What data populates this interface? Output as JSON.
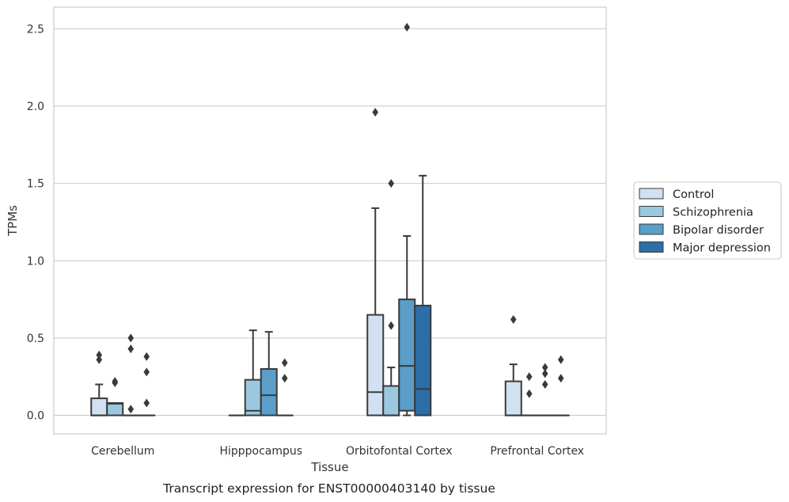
{
  "chart_data": {
    "type": "boxplot",
    "title": "",
    "caption": "Transcript expression for ENST00000403140 by tissue",
    "xlabel": "Tissue",
    "ylabel": "TPMs",
    "ylim": [
      -0.12,
      2.64
    ],
    "yticks": [
      0.0,
      0.5,
      1.0,
      1.5,
      2.0,
      2.5
    ],
    "ytick_labels": [
      "0.0",
      "0.5",
      "1.0",
      "1.5",
      "2.0",
      "2.5"
    ],
    "categories": [
      "Cerebellum",
      "Hipppocampus",
      "Orbitofontal Cortex",
      "Prefrontal Cortex"
    ],
    "grid": "horizontal",
    "legend_position": "right",
    "series": [
      {
        "name": "Control",
        "color": "#d1e1f1",
        "boxes": [
          {
            "q1": 0.0,
            "median": 0.0,
            "q3": 0.11,
            "whisker_low": 0.0,
            "whisker_high": 0.2,
            "outliers": [
              0.36,
              0.39
            ]
          },
          {
            "q1": 0.0,
            "median": 0.0,
            "q3": 0.0,
            "whisker_low": 0.0,
            "whisker_high": 0.0,
            "outliers": []
          },
          {
            "q1": 0.0,
            "median": 0.15,
            "q3": 0.65,
            "whisker_low": 0.0,
            "whisker_high": 1.34,
            "outliers": [
              1.96
            ]
          },
          {
            "q1": 0.0,
            "median": 0.0,
            "q3": 0.22,
            "whisker_low": 0.0,
            "whisker_high": 0.33,
            "outliers": [
              0.62
            ]
          }
        ]
      },
      {
        "name": "Schizophrenia",
        "color": "#9ac8e0",
        "boxes": [
          {
            "q1": 0.0,
            "median": 0.075,
            "q3": 0.08,
            "whisker_low": 0.0,
            "whisker_high": 0.08,
            "outliers": [
              0.21,
              0.22
            ]
          },
          {
            "q1": 0.0,
            "median": 0.03,
            "q3": 0.23,
            "whisker_low": 0.0,
            "whisker_high": 0.55,
            "outliers": []
          },
          {
            "q1": 0.0,
            "median": 0.0,
            "q3": 0.19,
            "whisker_low": 0.0,
            "whisker_high": 0.31,
            "outliers": [
              0.58,
              1.5
            ]
          },
          {
            "q1": 0.0,
            "median": 0.0,
            "q3": 0.0,
            "whisker_low": 0.0,
            "whisker_high": 0.0,
            "outliers": [
              0.14,
              0.25
            ]
          }
        ]
      },
      {
        "name": "Bipolar disorder",
        "color": "#5a9ec9",
        "boxes": [
          {
            "q1": 0.0,
            "median": 0.0,
            "q3": 0.0,
            "whisker_low": 0.0,
            "whisker_high": 0.0,
            "outliers": [
              0.04,
              0.43,
              0.5
            ]
          },
          {
            "q1": 0.0,
            "median": 0.13,
            "q3": 0.3,
            "whisker_low": 0.0,
            "whisker_high": 0.54,
            "outliers": []
          },
          {
            "q1": 0.03,
            "median": 0.32,
            "q3": 0.75,
            "whisker_low": 0.0,
            "whisker_high": 1.16,
            "outliers": [
              2.51
            ]
          },
          {
            "q1": 0.0,
            "median": 0.0,
            "q3": 0.0,
            "whisker_low": 0.0,
            "whisker_high": 0.0,
            "outliers": [
              0.2,
              0.27,
              0.31
            ]
          }
        ]
      },
      {
        "name": "Major depression",
        "color": "#2c6ea8",
        "boxes": [
          {
            "q1": 0.0,
            "median": 0.0,
            "q3": 0.0,
            "whisker_low": 0.0,
            "whisker_high": 0.0,
            "outliers": [
              0.08,
              0.28,
              0.38
            ]
          },
          {
            "q1": 0.0,
            "median": 0.0,
            "q3": 0.0,
            "whisker_low": 0.0,
            "whisker_high": 0.0,
            "outliers": [
              0.24,
              0.34
            ]
          },
          {
            "q1": 0.0,
            "median": 0.17,
            "q3": 0.71,
            "whisker_low": 0.0,
            "whisker_high": 1.55,
            "outliers": []
          },
          {
            "q1": 0.0,
            "median": 0.0,
            "q3": 0.0,
            "whisker_low": 0.0,
            "whisker_high": 0.0,
            "outliers": [
              0.24,
              0.36
            ]
          }
        ]
      }
    ]
  }
}
